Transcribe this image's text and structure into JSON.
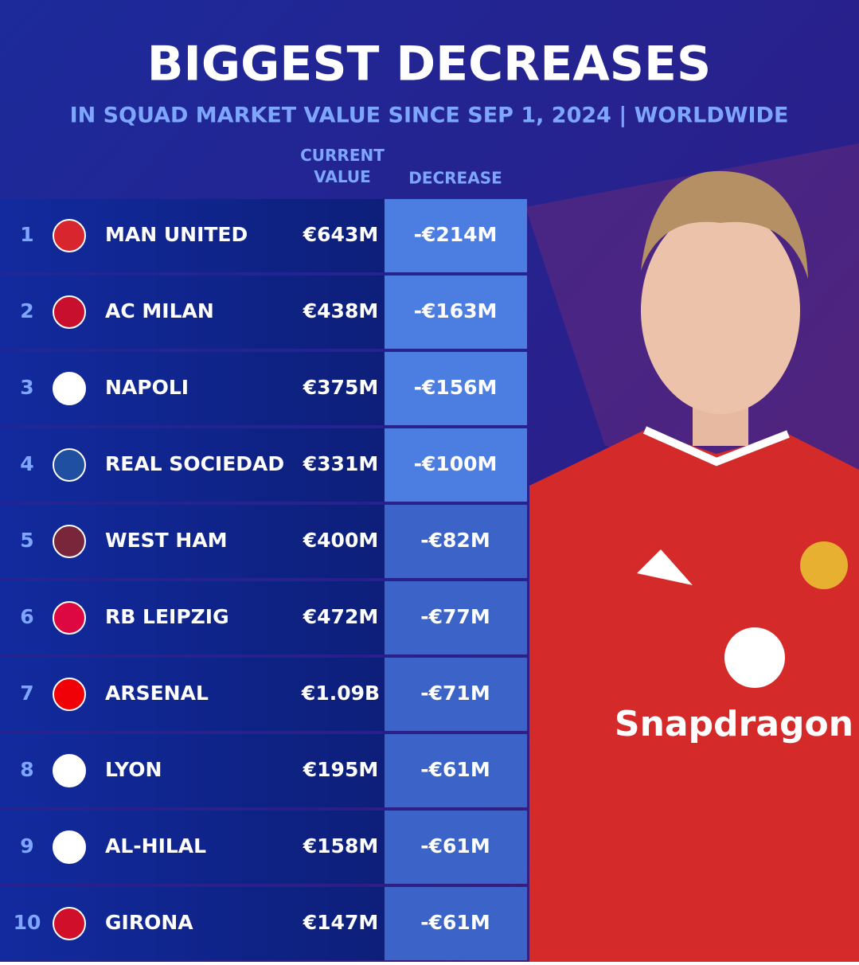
{
  "header": {
    "title": "BIGGEST DECREASES",
    "subtitle": "IN SQUAD MARKET VALUE SINCE SEP 1, 2024 | WORLDWIDE"
  },
  "table": {
    "columns": [
      "CURRENT VALUE",
      "DECREASE"
    ],
    "rows": [
      [
        "1",
        "MAN UNITED",
        "€643M",
        "-€214M"
      ],
      [
        "2",
        "AC MILAN",
        "€438M",
        "-€163M"
      ],
      [
        "3",
        "NAPOLI",
        "€375M",
        "-€156M"
      ],
      [
        "4",
        "REAL SOCIEDAD",
        "€331M",
        "-€100M"
      ],
      [
        "5",
        "WEST HAM",
        "€400M",
        "-€82M"
      ],
      [
        "6",
        "RB LEIPZIG",
        "€472M",
        "-€77M"
      ],
      [
        "7",
        "ARSENAL",
        "€1.09B",
        "-€71M"
      ],
      [
        "8",
        "LYON",
        "€195M",
        "-€61M"
      ],
      [
        "9",
        "AL-HILAL",
        "€158M",
        "-€61M"
      ],
      [
        "10",
        "GIRONA",
        "€147M",
        "-€61M"
      ]
    ]
  },
  "shirt": {
    "sponsor": "Snapdragon"
  }
}
